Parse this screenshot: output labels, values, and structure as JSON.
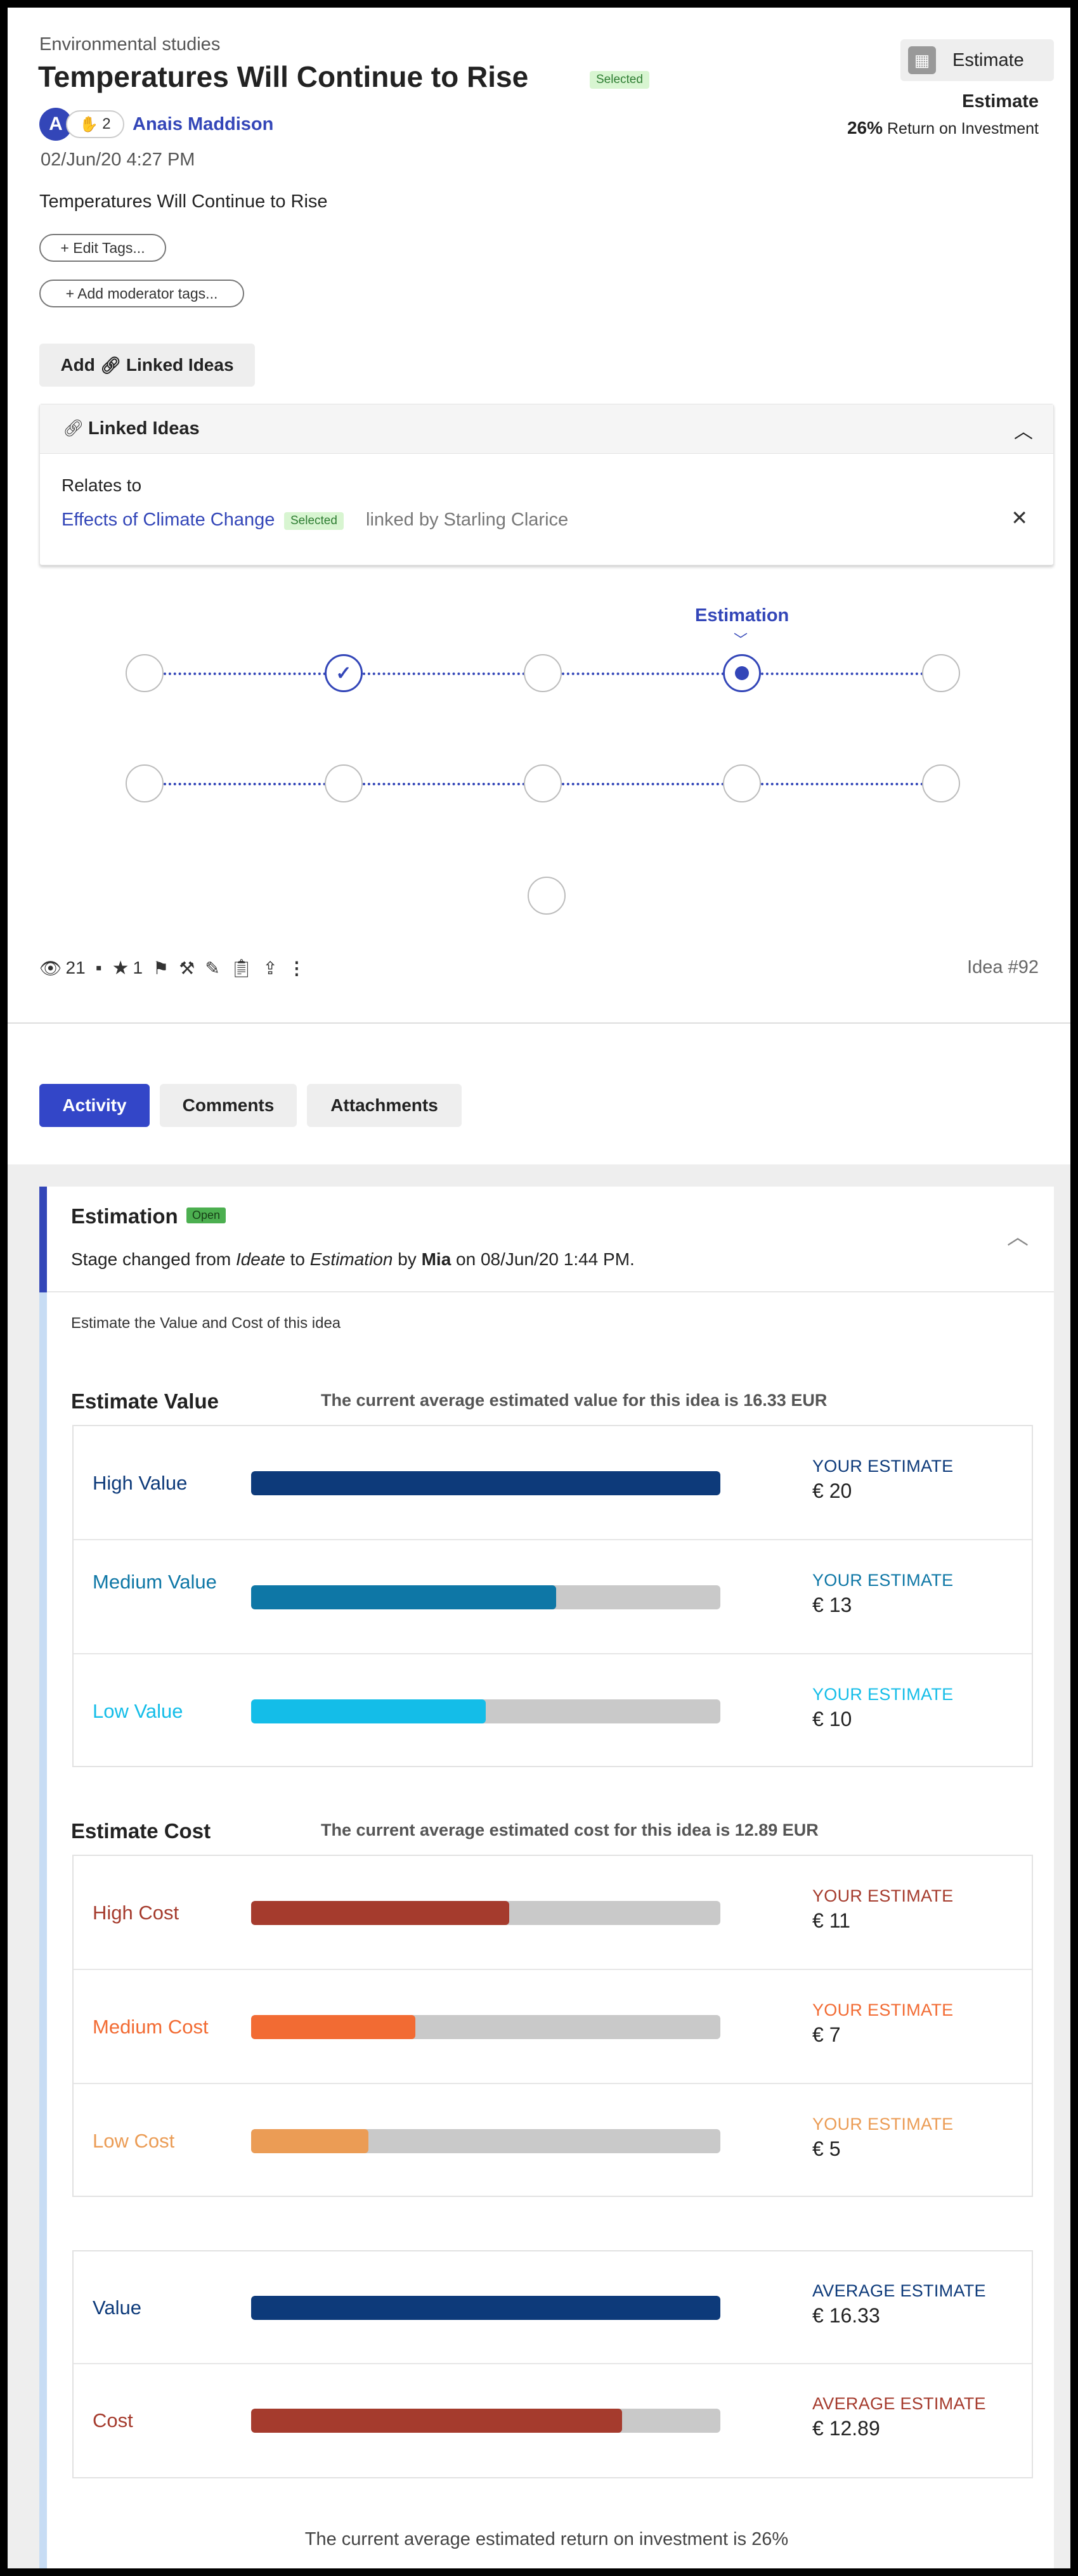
{
  "idea": {
    "category": "Environmental studies",
    "title": "Temperatures Will Continue to Rise",
    "status_badge": "Selected",
    "avatar_letter": "A",
    "clap_count": "2",
    "author": "Anais Maddison",
    "date": "02/Jun/20 4:27 PM",
    "description": "Temperatures Will Continue to Rise",
    "edit_tags_label": "+ Edit Tags...",
    "moderator_tags_label": "+ Add moderator tags...",
    "add_linked_label": "Add",
    "add_linked_label_2": "Linked Ideas"
  },
  "estimate_panel": {
    "button_label": "Estimate",
    "heading": "Estimate",
    "roi_value": "26%",
    "roi_label": "Return on Investment"
  },
  "linked_ideas": {
    "title": "Linked Ideas",
    "relates_to": "Relates to",
    "link_title": "Effects of Climate Change",
    "link_badge": "Selected",
    "linked_by": "linked by Starling Clarice"
  },
  "workflow": {
    "current_stage_label": "Estimation"
  },
  "stats": {
    "views": "21",
    "stars": "1",
    "idea_number": "Idea #92"
  },
  "tabs": {
    "activity": "Activity",
    "comments": "Comments",
    "attachments": "Attachments"
  },
  "activity": {
    "stage_title": "Estimation",
    "stage_badge": "Open",
    "change_prefix": "Stage changed from ",
    "from_stage": "Ideate",
    "to_word": " to ",
    "to_stage": "Estimation",
    "by_word": " by ",
    "by_user": "Mia",
    "on_date": " on 08/Jun/20 1:44 PM.",
    "instruction": "Estimate the Value and Cost of this idea"
  },
  "estimate_value": {
    "title": "Estimate Value",
    "note": "The current average estimated value for this idea is 16.33 EUR",
    "rows": [
      {
        "label": "High Value",
        "caption": "YOUR ESTIMATE",
        "value": "€ 20",
        "fill": 1.0,
        "color": "#0d3a7a"
      },
      {
        "label": "Medium Value",
        "caption": "YOUR ESTIMATE",
        "value": "€ 13",
        "fill": 0.65,
        "color": "#0e77a6"
      },
      {
        "label": "Low Value",
        "caption": "YOUR ESTIMATE",
        "value": "€ 10",
        "fill": 0.5,
        "color": "#14bde8"
      }
    ]
  },
  "estimate_cost": {
    "title": "Estimate Cost",
    "note": "The current average estimated cost for this idea is 12.89 EUR",
    "rows": [
      {
        "label": "High Cost",
        "caption": "YOUR ESTIMATE",
        "value": "€ 11",
        "fill": 0.55,
        "color": "#a53b2d"
      },
      {
        "label": "Medium Cost",
        "caption": "YOUR ESTIMATE",
        "value": "€ 7",
        "fill": 0.35,
        "color": "#f26b33"
      },
      {
        "label": "Low Cost",
        "caption": "YOUR ESTIMATE",
        "value": "€ 5",
        "fill": 0.25,
        "color": "#eb9c55"
      }
    ]
  },
  "averages": {
    "rows": [
      {
        "label": "Value",
        "caption": "AVERAGE ESTIMATE",
        "value": "€ 16.33",
        "fill": 1.0,
        "color": "#0d3a7a"
      },
      {
        "label": "Cost",
        "caption": "AVERAGE ESTIMATE",
        "value": "€ 12.89",
        "fill": 0.79,
        "color": "#a53b2d"
      }
    ],
    "roi_note": "The current average estimated return on investment is 26%"
  }
}
